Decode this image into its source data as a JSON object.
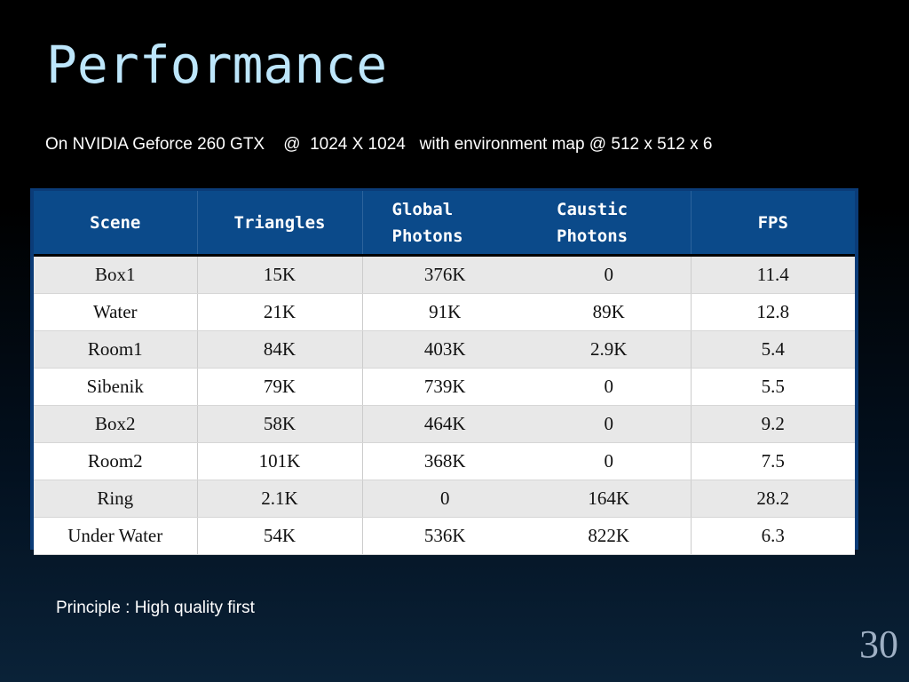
{
  "slide": {
    "title": "Performance",
    "subtitle": "On NVIDIA Geforce 260 GTX    @  1024 X 1024   with environment map @ 512 x 512 x 6",
    "principle": "Principle : High quality first",
    "slide_number": "30"
  },
  "table": {
    "headers": [
      {
        "line1": "Scene",
        "line2": ""
      },
      {
        "line1": "Triangles",
        "line2": ""
      },
      {
        "line1": "Global",
        "line2": "Photons"
      },
      {
        "line1": "Caustic",
        "line2": "Photons"
      },
      {
        "line1": "FPS",
        "line2": ""
      }
    ],
    "rows": [
      [
        "Box1",
        "15K",
        "376K",
        "0",
        "11.4"
      ],
      [
        "Water",
        "21K",
        "91K",
        "89K",
        "12.8"
      ],
      [
        "Room1",
        "84K",
        "403K",
        "2.9K",
        "5.4"
      ],
      [
        "Sibenik",
        "79K",
        "739K",
        "0",
        "5.5"
      ],
      [
        "Box2",
        "58K",
        "464K",
        "0",
        "9.2"
      ],
      [
        "Room2",
        "101K",
        "368K",
        "0",
        "7.5"
      ],
      [
        "Ring",
        "2.1K",
        "0",
        "164K",
        "28.2"
      ],
      [
        "Under Water",
        "54K",
        "536K",
        "822K",
        "6.3"
      ]
    ]
  },
  "colors": {
    "title": "#bde6fb",
    "header_bg": "#0b4a8a",
    "row_alt": "#e8e8e8"
  }
}
